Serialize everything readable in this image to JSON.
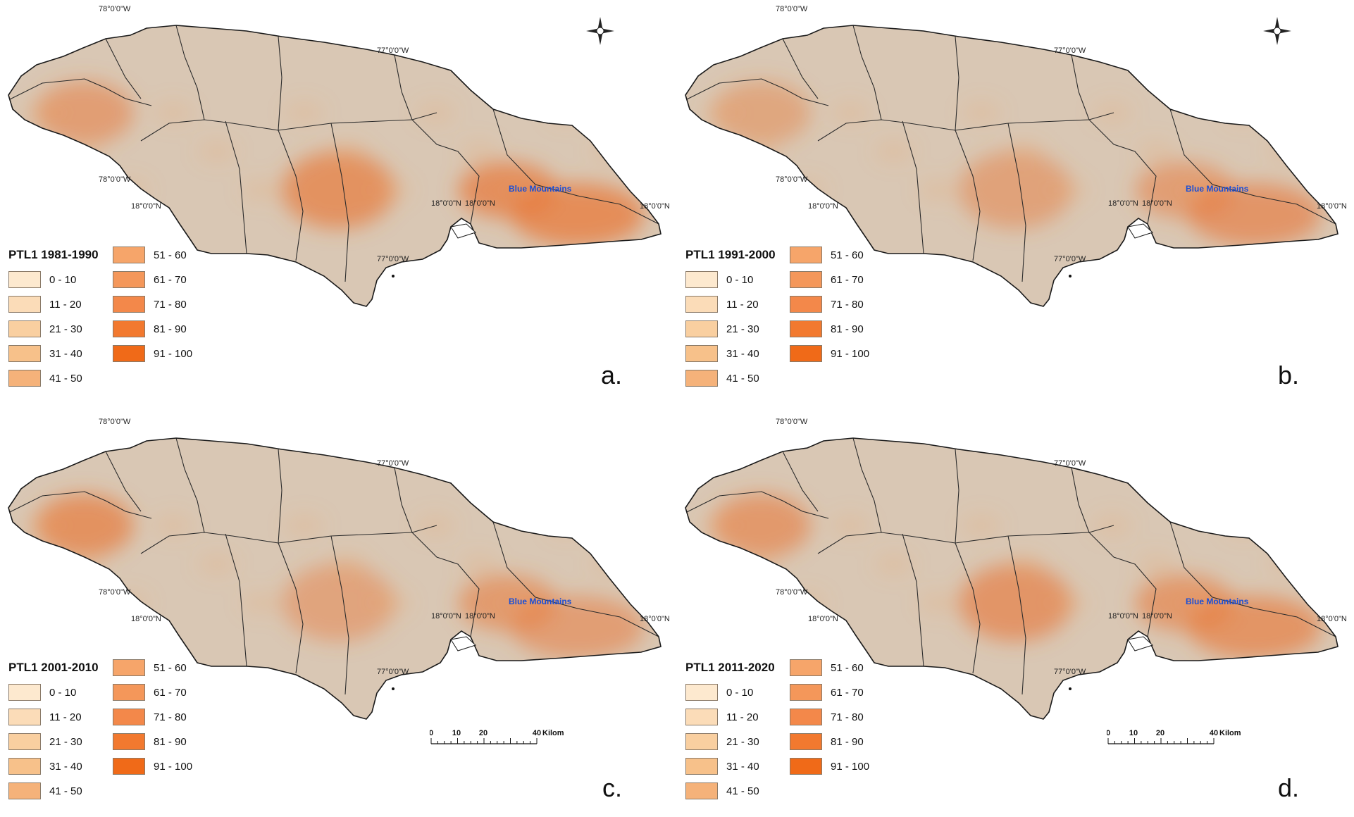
{
  "colors": {
    "land_base": "#d9c7b4",
    "outline": "#1a1a1a",
    "parish_line": "#2b2b2b",
    "water": "#ffffff",
    "classes": [
      "#fde9cf",
      "#fbdcb8",
      "#f9cfa0",
      "#f7c18a",
      "#f5b27a",
      "#f6a56a",
      "#f4975a",
      "#f3884a",
      "#f2792f",
      "#f06a18"
    ]
  },
  "coords": {
    "lon_west": "78°0'0\"W",
    "lon_east": "77°0'0\"W",
    "lat": "18°0'0\"N"
  },
  "place_label": "Blue Mountains",
  "legend_classes": [
    "0 - 10",
    "11 - 20",
    "21 - 30",
    "31 - 40",
    "41 - 50",
    "51 - 60",
    "61 - 70",
    "71 - 80",
    "81 - 90",
    "91 - 100"
  ],
  "panels": [
    {
      "id": "a",
      "title": "PTL1 1981-1990",
      "letter": "a.",
      "north_arrow": true,
      "scale_bar": false,
      "hotspots": [
        [
          1.0,
          0.3,
          0.55
        ],
        [
          0.95,
          0.34,
          0.48
        ],
        [
          0.85,
          0.4,
          0.58
        ],
        [
          0.55,
          0.18,
          0.42
        ]
      ]
    },
    {
      "id": "b",
      "title": "PTL1 1991-2000",
      "letter": "b.",
      "north_arrow": true,
      "scale_bar": false,
      "hotspots": [
        [
          0.75,
          0.3,
          0.55
        ],
        [
          0.55,
          0.34,
          0.48
        ],
        [
          0.45,
          0.4,
          0.58
        ],
        [
          0.35,
          0.18,
          0.42
        ]
      ]
    },
    {
      "id": "c",
      "title": "PTL1 2001-2010",
      "letter": "c.",
      "north_arrow": false,
      "scale_bar": true,
      "hotspots": [
        [
          0.55,
          0.3,
          0.55
        ],
        [
          0.65,
          0.34,
          0.48
        ],
        [
          0.4,
          0.4,
          0.58
        ],
        [
          0.85,
          0.18,
          0.42
        ]
      ]
    },
    {
      "id": "d",
      "title": "PTL1 2011-2020",
      "letter": "d.",
      "north_arrow": false,
      "scale_bar": true,
      "hotspots": [
        [
          0.8,
          0.3,
          0.55
        ],
        [
          0.7,
          0.34,
          0.48
        ],
        [
          0.75,
          0.4,
          0.58
        ],
        [
          0.7,
          0.18,
          0.42
        ]
      ]
    }
  ],
  "scale_bar": {
    "ticks": [
      "0",
      "10",
      "20",
      "40"
    ],
    "unit": "Kilometers"
  }
}
